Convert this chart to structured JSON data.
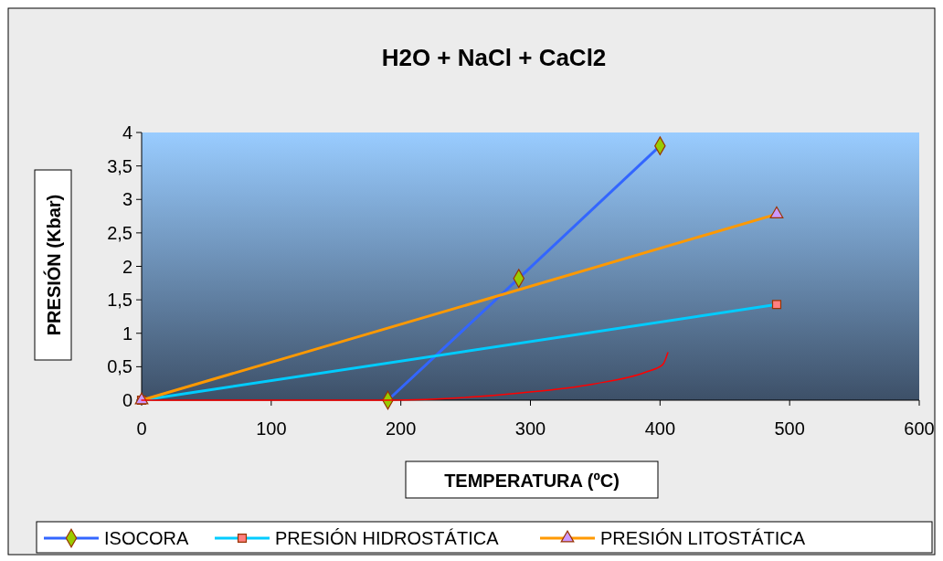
{
  "chart_data": {
    "type": "line",
    "title": "H2O + NaCl + CaCl2",
    "xlabel": "TEMPERATURA (ºC)",
    "ylabel": "PRESIÓN (Kbar)",
    "xlim": [
      0,
      600
    ],
    "xticks": [
      0,
      100,
      200,
      300,
      400,
      500,
      600
    ],
    "ylim": [
      0,
      4
    ],
    "yticks": [
      0,
      {
        "value": 0.5,
        "label": "0,5"
      },
      1,
      {
        "value": 1.5,
        "label": "1,5"
      },
      2,
      {
        "value": 2.5,
        "label": "2,5"
      },
      3,
      {
        "value": 3.5,
        "label": "3,5"
      },
      4
    ],
    "grid": false,
    "legend": "bottom",
    "line_style": "solid",
    "series": [
      {
        "name": "ISOCORA",
        "color": "#3366ff",
        "marker": "diamond",
        "x": [
          190,
          291,
          400
        ],
        "values": [
          0,
          1.82,
          3.8
        ]
      },
      {
        "name": "PRESIÓN HIDROSTÁTICA",
        "color": "#00ccff",
        "marker": "square",
        "x": [
          0,
          490
        ],
        "values": [
          0,
          1.43
        ]
      },
      {
        "name": "PRESIÓN LITOSTÁTICA",
        "color": "#ff9900",
        "marker": "triangle",
        "x": [
          0,
          490
        ],
        "values": [
          0,
          2.78
        ]
      },
      {
        "color": "#ff0000",
        "marker": "none",
        "x": [
          0,
          100,
          190,
          293,
          348,
          389,
          402,
          406
        ],
        "values": [
          0,
          0,
          0,
          0.11,
          0.24,
          0.42,
          0.53,
          0.71
        ]
      }
    ]
  }
}
